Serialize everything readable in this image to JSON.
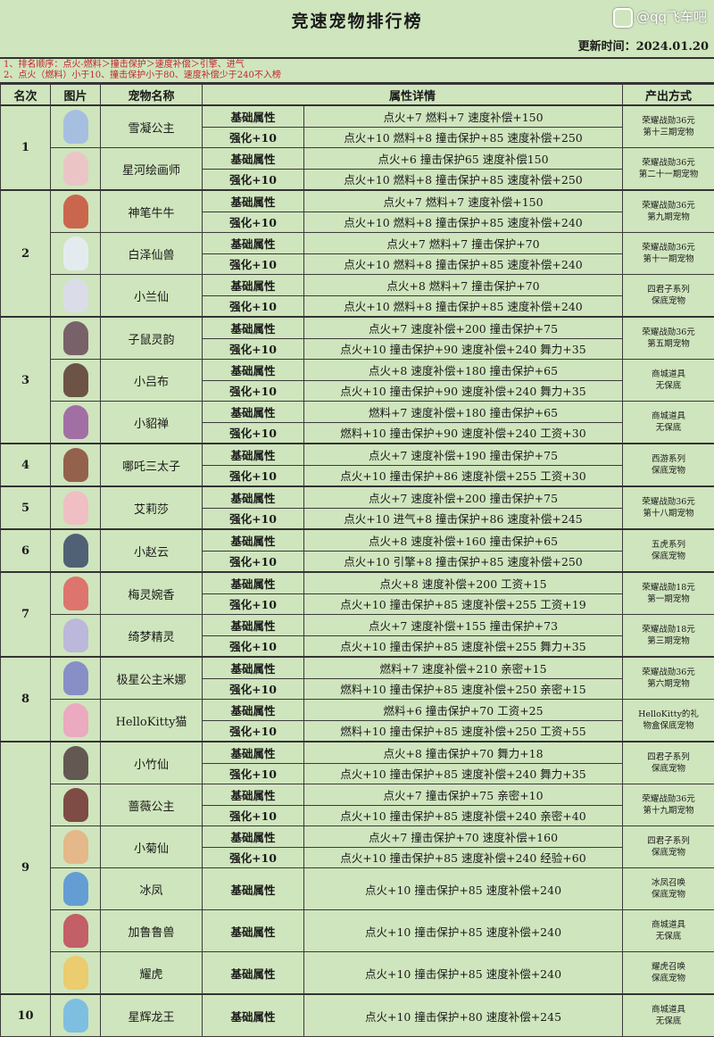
{
  "title": "竞速宠物排行榜",
  "update": "更新时间：2024.01.20",
  "notes": [
    "1、排名顺序：点火-燃料＞撞击保护＞速度补偿＞引擎、进气",
    "2、点火（燃料）小于10、撞击保护小于80、速度补偿少于240不入榜"
  ],
  "headers": [
    "名次",
    "图片",
    "宠物名称",
    "属性详情",
    "产出方式"
  ],
  "watermark": "@qq飞车吧",
  "colors": {
    "note_text": "#c3262b",
    "background": "#cfe5bd",
    "border": "#333333"
  },
  "ranks": [
    {
      "rank": "1",
      "pets": [
        {
          "name": "雪凝公主",
          "color": "#9fb8e8",
          "source": [
            "荣耀战勋36元",
            "第十三期宠物"
          ],
          "rows": [
            {
              "label": "基础属性",
              "detail": "点火+7  燃料+7  速度补偿+150"
            },
            {
              "label": "强化+10",
              "detail": "点火+10  燃料+8  撞击保护+85  速度补偿+250"
            }
          ]
        },
        {
          "name": "星河绘画师",
          "color": "#f0c0c8",
          "source": [
            "荣耀战勋36元",
            "第二十一期宠物"
          ],
          "rows": [
            {
              "label": "基础属性",
              "detail": "点火+6  撞击保护65  速度补偿150"
            },
            {
              "label": "强化+10",
              "detail": "点火+10  燃料+8  撞击保护+85  速度补偿+250"
            }
          ]
        }
      ]
    },
    {
      "rank": "2",
      "pets": [
        {
          "name": "神笔牛牛",
          "color": "#c9503a",
          "source": [
            "荣耀战勋36元",
            "第九期宠物"
          ],
          "rows": [
            {
              "label": "基础属性",
              "detail": "点火+7  燃料+7  速度补偿+150"
            },
            {
              "label": "强化+10",
              "detail": "点火+10  燃料+8  撞击保护+85  速度补偿+240"
            }
          ]
        },
        {
          "name": "白泽仙兽",
          "color": "#e8ecf8",
          "source": [
            "荣耀战勋36元",
            "第十一期宠物"
          ],
          "rows": [
            {
              "label": "基础属性",
              "detail": "点火+7  燃料+7  撞击保护+70"
            },
            {
              "label": "强化+10",
              "detail": "点火+10  燃料+8  撞击保护+85  速度补偿+240"
            }
          ]
        },
        {
          "name": "小兰仙",
          "color": "#dcdcf0",
          "source": [
            "四君子系列",
            "保底宠物"
          ],
          "rows": [
            {
              "label": "基础属性",
              "detail": "点火+8  燃料+7  撞击保护+70"
            },
            {
              "label": "强化+10",
              "detail": "点火+10  燃料+8  撞击保护+85  速度补偿+240"
            }
          ]
        }
      ]
    },
    {
      "rank": "3",
      "pets": [
        {
          "name": "子鼠灵韵",
          "color": "#6a4a5a",
          "source": [
            "荣耀战勋36元",
            "第五期宠物"
          ],
          "rows": [
            {
              "label": "基础属性",
              "detail": "点火+7  速度补偿+200  撞击保护+75"
            },
            {
              "label": "强化+10",
              "detail": "点火+10  撞击保护+90  速度补偿+240  舞力+35"
            }
          ]
        },
        {
          "name": "小吕布",
          "color": "#5a3a30",
          "source": [
            "商城道具",
            "无保底"
          ],
          "rows": [
            {
              "label": "基础属性",
              "detail": "点火+8  速度补偿+180  撞击保护+65"
            },
            {
              "label": "强化+10",
              "detail": "点火+10  撞击保护+90  速度补偿+240  舞力+35"
            }
          ]
        },
        {
          "name": "小貂禅",
          "color": "#9a5aa0",
          "source": [
            "商城道具",
            "无保底"
          ],
          "rows": [
            {
              "label": "基础属性",
              "detail": "燃料+7  速度补偿+180  撞击保护+65"
            },
            {
              "label": "强化+10",
              "detail": "燃料+10  撞击保护+90  速度补偿+240  工资+30"
            }
          ]
        }
      ]
    },
    {
      "rank": "4",
      "pets": [
        {
          "name": "哪吒三太子",
          "color": "#8a4a3a",
          "source": [
            "西游系列",
            "保底宠物"
          ],
          "rows": [
            {
              "label": "基础属性",
              "detail": "点火+7  速度补偿+190  撞击保护+75"
            },
            {
              "label": "强化+10",
              "detail": "点火+10  撞击保护+86  速度补偿+255  工资+30"
            }
          ]
        }
      ]
    },
    {
      "rank": "5",
      "pets": [
        {
          "name": "艾莉莎",
          "color": "#f4b8c4",
          "source": [
            "荣耀战勋36元",
            "第十八期宠物"
          ],
          "rows": [
            {
              "label": "基础属性",
              "detail": "点火+7  速度补偿+200  撞击保护+75"
            },
            {
              "label": "强化+10",
              "detail": "点火+10  进气+8  撞击保护+86  速度补偿+245"
            }
          ]
        }
      ]
    },
    {
      "rank": "6",
      "pets": [
        {
          "name": "小赵云",
          "color": "#3a4a6a",
          "source": [
            "五虎系列",
            "保底宠物"
          ],
          "rows": [
            {
              "label": "基础属性",
              "detail": "点火+8  速度补偿+160  撞击保护+65"
            },
            {
              "label": "强化+10",
              "detail": "点火+10  引擎+8  撞击保护+85  速度补偿+250"
            }
          ]
        }
      ]
    },
    {
      "rank": "7",
      "pets": [
        {
          "name": "梅灵婉香",
          "color": "#e06060",
          "source": [
            "荣耀战勋18元",
            "第一期宠物"
          ],
          "rows": [
            {
              "label": "基础属性",
              "detail": "点火+8  速度补偿+200  工资+15"
            },
            {
              "label": "强化+10",
              "detail": "点火+10  撞击保护+85  速度补偿+255  工资+19"
            }
          ]
        },
        {
          "name": "绮梦精灵",
          "color": "#b8b0e0",
          "source": [
            "荣耀战勋18元",
            "第三期宠物"
          ],
          "rows": [
            {
              "label": "基础属性",
              "detail": "点火+7  速度补偿+155  撞击保护+73"
            },
            {
              "label": "强化+10",
              "detail": "点火+10  撞击保护+85  速度补偿+255  舞力+35"
            }
          ]
        }
      ]
    },
    {
      "rank": "8",
      "pets": [
        {
          "name": "极星公主米娜",
          "color": "#7a80c8",
          "source": [
            "荣耀战勋36元",
            "第六期宠物"
          ],
          "rows": [
            {
              "label": "基础属性",
              "detail": "燃料+7  速度补偿+210  亲密+15"
            },
            {
              "label": "强化+10",
              "detail": "燃料+10  撞击保护+85  速度补偿+250  亲密+15"
            }
          ]
        },
        {
          "name": "HelloKitty猫",
          "color": "#f0a0c0",
          "source": [
            "HelloKitty的礼",
            "物盒保底宠物"
          ],
          "rows": [
            {
              "label": "基础属性",
              "detail": "燃料+6  撞击保护+70  工资+25"
            },
            {
              "label": "强化+10",
              "detail": "燃料+10  撞击保护+85  速度补偿+250  工资+55"
            }
          ]
        }
      ]
    },
    {
      "rank": "9",
      "pets": [
        {
          "name": "小竹仙",
          "color": "#504040",
          "source": [
            "四君子系列",
            "保底宠物"
          ],
          "rows": [
            {
              "label": "基础属性",
              "detail": "点火+8  撞击保护+70  舞力+18"
            },
            {
              "label": "强化+10",
              "detail": "点火+10  撞击保护+85  速度补偿+240  舞力+35"
            }
          ]
        },
        {
          "name": "蔷薇公主",
          "color": "#703030",
          "source": [
            "荣耀战勋36元",
            "第十九期宠物"
          ],
          "rows": [
            {
              "label": "基础属性",
              "detail": "点火+7  撞击保护+75  亲密+10"
            },
            {
              "label": "强化+10",
              "detail": "点火+10  撞击保护+85  速度补偿+240  亲密+40"
            }
          ]
        },
        {
          "name": "小菊仙",
          "color": "#e8b080",
          "source": [
            "四君子系列",
            "保底宠物"
          ],
          "rows": [
            {
              "label": "基础属性",
              "detail": "点火+7  撞击保护+70  速度补偿+160"
            },
            {
              "label": "强化+10",
              "detail": "点火+10  撞击保护+85  速度补偿+240  经验+60"
            }
          ]
        },
        {
          "name": "冰凤",
          "color": "#5090d8",
          "source": [
            "冰凤召唤",
            "保底宠物"
          ],
          "rows": [
            {
              "label": "基础属性",
              "detail": "点火+10  撞击保护+85  速度补偿+240"
            }
          ]
        },
        {
          "name": "加鲁鲁兽",
          "color": "#c04858",
          "source": [
            "商城道具",
            "无保底"
          ],
          "rows": [
            {
              "label": "基础属性",
              "detail": "点火+10  撞击保护+85  速度补偿+240"
            }
          ]
        },
        {
          "name": "耀虎",
          "color": "#f0c860",
          "source": [
            "耀虎召唤",
            "保底宠物"
          ],
          "rows": [
            {
              "label": "基础属性",
              "detail": "点火+10  撞击保护+85  速度补偿+240"
            }
          ]
        }
      ]
    },
    {
      "rank": "10",
      "pets": [
        {
          "name": "星辉龙王",
          "color": "#70b8e8",
          "source": [
            "商城道具",
            "无保底"
          ],
          "rows": [
            {
              "label": "基础属性",
              "detail": "点火+10  撞击保护+80  速度补偿+245"
            }
          ]
        }
      ]
    }
  ]
}
